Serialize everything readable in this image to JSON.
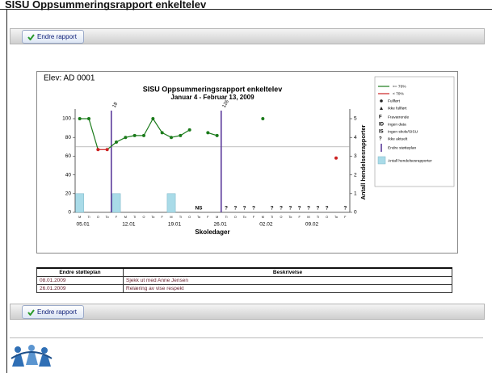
{
  "header": {
    "title": "SISU Oppsummeringsrapport enkeltelev"
  },
  "toolbars": [
    {
      "button": "Endre rapport"
    },
    {
      "button": "Endre rapport"
    }
  ],
  "chart_data": {
    "type": "line",
    "student": "Elev: AD 0001",
    "title": "SISU Oppsummeringsrapport enkeltelev",
    "subtitle": "Januar 4 - Februar 13, 2009",
    "x_label": "Skoledager",
    "y2_label": "Antall hendelsesrapporter",
    "categories": [
      "M",
      "Ti",
      "O",
      "To",
      "F",
      "M",
      "Ti",
      "O",
      "To",
      "F",
      "M",
      "Ti",
      "O",
      "To",
      "F",
      "M",
      "Ti",
      "O",
      "To",
      "F",
      "M",
      "Ti",
      "O",
      "To",
      "F",
      "M",
      "Ti",
      "O",
      "To",
      "F"
    ],
    "week_labels": [
      "05.01",
      "12.01",
      "19.01",
      "26.01",
      "02.02",
      "09.02"
    ],
    "series": [
      {
        "name": ">= 70%",
        "color": "#1a7a1a",
        "values": [
          100,
          100,
          67,
          67,
          75,
          80,
          82,
          82,
          100,
          85,
          80,
          82,
          88,
          null,
          85,
          82,
          null,
          null,
          null,
          null,
          100,
          null,
          null,
          null,
          null,
          null,
          null,
          null,
          58,
          null
        ]
      },
      {
        "name": "Antall hendelsesrapporter",
        "color": "#a9dbe8",
        "axis": "y2",
        "values": [
          1,
          0,
          0,
          0,
          1,
          0,
          0,
          0,
          0,
          0,
          1,
          0,
          0,
          0,
          0,
          0,
          0,
          0,
          0,
          0,
          0,
          0,
          0,
          0,
          0,
          0,
          0,
          0,
          0,
          0
        ]
      }
    ],
    "below_color": "#cc2222",
    "threshold": 70,
    "status": [
      null,
      null,
      null,
      null,
      null,
      null,
      null,
      null,
      null,
      null,
      null,
      null,
      null,
      "NS",
      null,
      null,
      "?",
      "?",
      "?",
      "?",
      null,
      "?",
      "?",
      "?",
      "?",
      "?",
      "?",
      "?",
      null,
      "?"
    ],
    "plan_changes": [
      null,
      null,
      null,
      "18",
      null,
      null,
      null,
      null,
      null,
      null,
      null,
      null,
      null,
      null,
      null,
      "126",
      null,
      null,
      null,
      null,
      null,
      null,
      null,
      null,
      null,
      null,
      null,
      null,
      null,
      null
    ],
    "ylim": [
      0,
      100
    ],
    "yticks": [
      0,
      20,
      40,
      60,
      80,
      100
    ],
    "y2lim": [
      0,
      5
    ],
    "y2ticks": [
      0,
      1,
      2,
      3,
      4,
      5
    ],
    "legend": [
      {
        "label": ">= 70%"
      },
      {
        "label": "< 70%"
      },
      {
        "label": "Fullført"
      },
      {
        "label": "Ikke fullført"
      },
      {
        "symbol": "F",
        "label": "Fraværende"
      },
      {
        "symbol": "ID",
        "label": "Ingen data"
      },
      {
        "symbol": "IS",
        "label": "Ingen skole/SISU"
      },
      {
        "symbol": "?",
        "label": "Ikke aktuelt"
      },
      {
        "label": "Endre støtteplan"
      },
      {
        "label": "Antall hendelsesrapporter"
      }
    ]
  },
  "table": {
    "header": [
      "Endre støtteplan",
      "Beskrivelse"
    ],
    "rows": [
      [
        "08.01.2009",
        "Sjekk ut med Anne Jensen"
      ],
      [
        "26.01.2009",
        "Relæring av vise respekt"
      ]
    ]
  }
}
